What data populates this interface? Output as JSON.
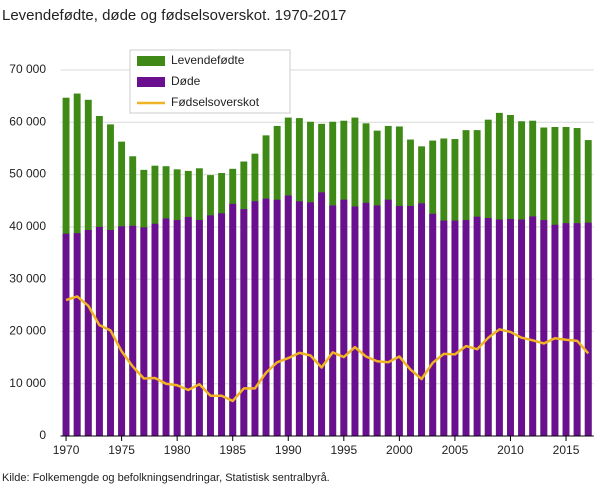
{
  "chart_data": {
    "type": "bar",
    "title": "Levendefødte, døde og fødselsoverskot. 1970-2017",
    "source": "Kilde: Folkemengde og befolkningsendringar, Statistisk sentralbyrå.",
    "x": [
      1970,
      1971,
      1972,
      1973,
      1974,
      1975,
      1976,
      1977,
      1978,
      1979,
      1980,
      1981,
      1982,
      1983,
      1984,
      1985,
      1986,
      1987,
      1988,
      1989,
      1990,
      1991,
      1992,
      1993,
      1994,
      1995,
      1996,
      1997,
      1998,
      1999,
      2000,
      2001,
      2002,
      2003,
      2004,
      2005,
      2006,
      2007,
      2008,
      2009,
      2010,
      2011,
      2012,
      2013,
      2014,
      2015,
      2016,
      2017
    ],
    "series": [
      {
        "name": "Levendefødte",
        "type": "bar",
        "color": "#3f8a17",
        "values": [
          64700,
          65500,
          64300,
          61200,
          59600,
          56300,
          53500,
          50900,
          51700,
          51600,
          51000,
          50700,
          51200,
          49900,
          50300,
          51100,
          52500,
          54000,
          57500,
          59300,
          60900,
          60800,
          60100,
          59700,
          60100,
          60300,
          60900,
          59800,
          58400,
          59300,
          59200,
          56700,
          55400,
          56500,
          56900,
          56800,
          58500,
          58500,
          60500,
          61800,
          61400,
          60200,
          60300,
          59000,
          59100,
          59100,
          58900,
          56600
        ]
      },
      {
        "name": "Døde",
        "type": "bar",
        "color": "#6b0f91",
        "values": [
          38700,
          38800,
          39400,
          40000,
          39400,
          40100,
          40200,
          39900,
          40600,
          41600,
          41300,
          41900,
          41300,
          42200,
          42600,
          44400,
          43400,
          44900,
          45400,
          45200,
          46000,
          44900,
          44700,
          46600,
          44100,
          45200,
          43900,
          44600,
          44100,
          45200,
          44000,
          44000,
          44500,
          42500,
          41200,
          41200,
          41300,
          41950,
          41700,
          41400,
          41500,
          41400,
          41990,
          41300,
          40400,
          40700,
          40700,
          40800
        ]
      },
      {
        "name": "Fødselsoverskot",
        "type": "line",
        "color": "#f0b323",
        "values": [
          26000,
          26700,
          24900,
          21200,
          20200,
          16200,
          13300,
          11000,
          11100,
          10000,
          9700,
          8800,
          9900,
          7700,
          7700,
          6700,
          9100,
          9100,
          12100,
          14100,
          14900,
          15900,
          15400,
          13100,
          16000,
          15100,
          17000,
          15200,
          14300,
          14100,
          15200,
          12700,
          10900,
          14000,
          15700,
          15600,
          17200,
          16600,
          18800,
          20400,
          19900,
          18800,
          18300,
          17700,
          18700,
          18400,
          18200,
          15800
        ]
      }
    ],
    "xlim": [
      1969.5,
      2017.5
    ],
    "xticks": [
      1970,
      1975,
      1980,
      1985,
      1990,
      1995,
      2000,
      2005,
      2010,
      2015
    ],
    "ylim": [
      0,
      70000
    ],
    "yticks": [
      0,
      {
        "value": 10000,
        "label": "10 000"
      },
      {
        "value": 20000,
        "label": "20 000"
      },
      {
        "value": 30000,
        "label": "30 000"
      },
      {
        "value": 40000,
        "label": "40 000"
      },
      {
        "value": 50000,
        "label": "50 000"
      },
      {
        "value": 60000,
        "label": "60 000"
      },
      {
        "value": 70000,
        "label": "70 000"
      }
    ],
    "grid": true
  }
}
